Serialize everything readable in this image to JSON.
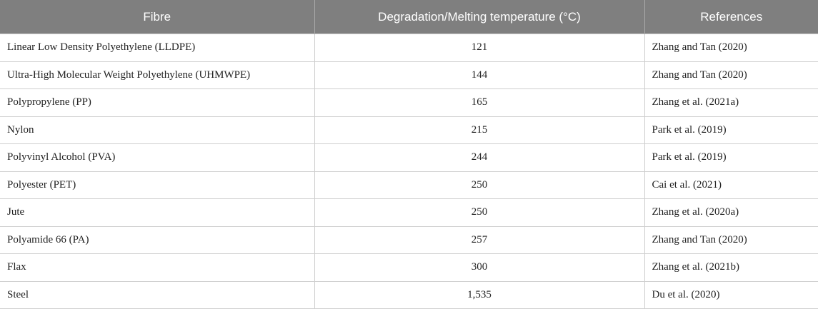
{
  "table": {
    "header": [
      "Fibre",
      "Degradation/Melting temperature (°C)",
      "References"
    ],
    "rows": [
      [
        "Linear Low Density Polyethylene (LLDPE)",
        "121",
        "Zhang and Tan (2020)"
      ],
      [
        "Ultra-High Molecular Weight Polyethylene (UHMWPE)",
        "144",
        "Zhang and Tan (2020)"
      ],
      [
        "Polypropylene (PP)",
        "165",
        "Zhang et al. (2021a)"
      ],
      [
        "Nylon",
        "215",
        "Park et al. (2019)"
      ],
      [
        "Polyvinyl Alcohol (PVA)",
        "244",
        "Park et al. (2019)"
      ],
      [
        "Polyester (PET)",
        "250",
        "Cai et al. (2021)"
      ],
      [
        "Jute",
        "250",
        "Zhang et al. (2020a)"
      ],
      [
        "Polyamide 66 (PA)",
        "257",
        "Zhang and Tan (2020)"
      ],
      [
        "Flax",
        "300",
        "Zhang et al. (2021b)"
      ],
      [
        "Steel",
        "1,535",
        "Du et al. (2020)"
      ]
    ]
  }
}
